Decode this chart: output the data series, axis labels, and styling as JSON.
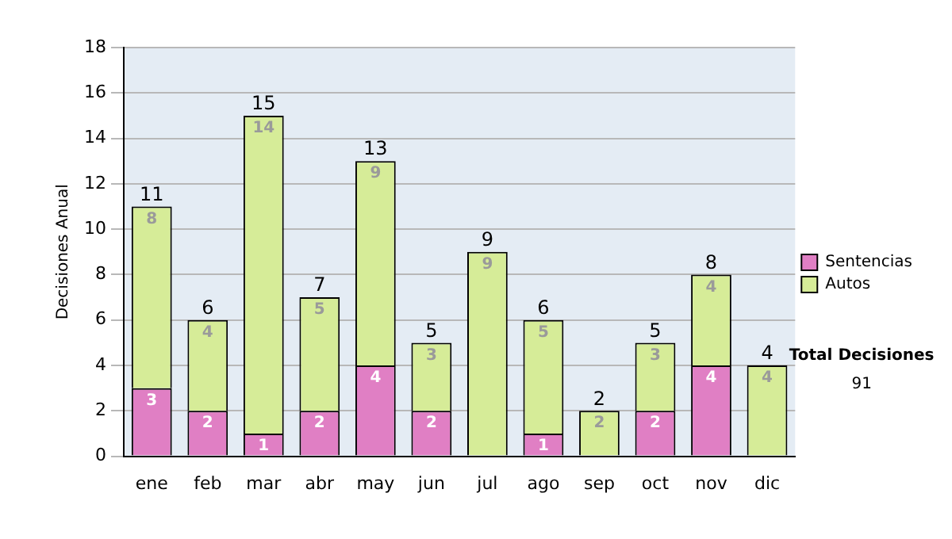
{
  "chart_data": {
    "type": "bar",
    "stacked": true,
    "ylabel": "Decisiones Anual",
    "categories": [
      "ene",
      "feb",
      "mar",
      "abr",
      "may",
      "jun",
      "jul",
      "ago",
      "sep",
      "oct",
      "nov",
      "dic"
    ],
    "series": [
      {
        "name": "Sentencias",
        "color": "#e07fc4",
        "values": [
          3,
          2,
          1,
          2,
          4,
          2,
          0,
          1,
          0,
          2,
          4,
          0
        ],
        "value_labels": [
          "3",
          "2",
          "1",
          "2",
          "4",
          "2",
          null,
          "1",
          null,
          "2",
          "4",
          null
        ]
      },
      {
        "name": "Autos",
        "color": "#d6ec98",
        "values": [
          8,
          4,
          14,
          5,
          9,
          3,
          9,
          5,
          2,
          3,
          4,
          4
        ],
        "value_labels": [
          "8",
          "4",
          "14",
          "5",
          "9",
          "3",
          "9",
          "5",
          "2",
          "3",
          "4",
          "4"
        ]
      }
    ],
    "totals": [
      "11",
      "6",
      "15",
      "7",
      "13",
      "5",
      "9",
      "6",
      "2",
      "5",
      "8",
      "4"
    ],
    "ylim": [
      0,
      18
    ],
    "yticks": [
      0,
      2,
      4,
      6,
      8,
      10,
      12,
      14,
      16,
      18
    ],
    "grid": "y",
    "legend": "right",
    "annotations": [
      "Total Decisiones",
      "91"
    ]
  }
}
